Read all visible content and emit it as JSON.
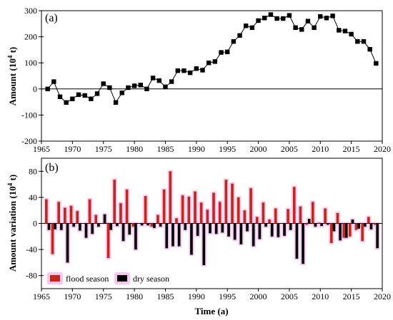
{
  "chart_data": [
    {
      "type": "line",
      "panel_label": "(a)",
      "ylabel_main": "Amount (10",
      "ylabel_sup": "4",
      "ylabel_tail": " t)",
      "ylim": [
        -200,
        300
      ],
      "yticks": [
        -200,
        -100,
        0,
        100,
        200,
        300
      ],
      "xlim": [
        1965,
        2020
      ],
      "xticks": [
        1965,
        1970,
        1975,
        1980,
        1985,
        1990,
        1995,
        2000,
        2005,
        2010,
        2015,
        2020
      ],
      "colors": {
        "line": "#000000",
        "zero_line": "#000000"
      },
      "x": [
        1966,
        1967,
        1968,
        1969,
        1970,
        1971,
        1972,
        1973,
        1974,
        1975,
        1976,
        1977,
        1978,
        1979,
        1980,
        1981,
        1982,
        1983,
        1984,
        1985,
        1986,
        1987,
        1988,
        1989,
        1990,
        1991,
        1992,
        1993,
        1994,
        1995,
        1996,
        1997,
        1998,
        1999,
        2000,
        2001,
        2002,
        2003,
        2004,
        2005,
        2006,
        2007,
        2008,
        2009,
        2010,
        2011,
        2012,
        2013,
        2014,
        2015,
        2016,
        2017,
        2018,
        2019
      ],
      "y": [
        0,
        28,
        -30,
        -52,
        -38,
        -22,
        -25,
        -38,
        -18,
        20,
        5,
        -52,
        -15,
        5,
        12,
        15,
        0,
        42,
        32,
        8,
        28,
        70,
        70,
        62,
        78,
        72,
        100,
        105,
        140,
        142,
        182,
        205,
        242,
        235,
        262,
        272,
        285,
        270,
        270,
        282,
        235,
        228,
        260,
        235,
        278,
        272,
        280,
        225,
        222,
        210,
        182,
        182,
        152,
        98
      ]
    },
    {
      "type": "bar",
      "panel_label": "(b)",
      "ylabel_main": "Amount variation (10",
      "ylabel_sup": "4",
      "ylabel_tail": " t)",
      "xlabel": "Time (a)",
      "ylim": [
        -100,
        100
      ],
      "yticks": [
        -80,
        -40,
        0,
        40,
        80
      ],
      "xlim": [
        1965,
        2020
      ],
      "xticks": [
        1965,
        1970,
        1975,
        1980,
        1985,
        1990,
        1995,
        2000,
        2005,
        2010,
        2015,
        2020
      ],
      "x": [
        1966,
        1967,
        1968,
        1969,
        1970,
        1971,
        1972,
        1973,
        1974,
        1975,
        1976,
        1977,
        1978,
        1979,
        1980,
        1981,
        1982,
        1983,
        1984,
        1985,
        1986,
        1987,
        1988,
        1989,
        1990,
        1991,
        1992,
        1993,
        1994,
        1995,
        1996,
        1997,
        1998,
        1999,
        2000,
        2001,
        2002,
        2003,
        2004,
        2005,
        2006,
        2007,
        2008,
        2009,
        2010,
        2011,
        2012,
        2013,
        2014,
        2015,
        2016,
        2017,
        2018,
        2019
      ],
      "series": [
        {
          "name": "flood season",
          "color": "#c0281b",
          "glow": "#f4c6f0",
          "values": [
            37,
            -47,
            33,
            24,
            27,
            19,
            0,
            37,
            13,
            0,
            -53,
            67,
            31,
            52,
            -5,
            0,
            42,
            -5,
            13,
            52,
            80,
            8,
            43,
            41,
            49,
            32,
            21,
            47,
            33,
            67,
            61,
            40,
            20,
            54,
            10,
            32,
            6,
            23,
            0,
            22,
            56,
            26,
            -2,
            33,
            1,
            23,
            -30,
            16,
            -22,
            -20,
            -10,
            -27,
            10,
            -2
          ]
        },
        {
          "name": "dry season",
          "color": "#000000",
          "glow": "#f4c6f0",
          "values": [
            -10,
            -9,
            -10,
            -60,
            -5,
            -11,
            -22,
            -16,
            -5,
            14,
            -10,
            -4,
            -27,
            -17,
            -40,
            -3,
            -3,
            -7,
            -5,
            -38,
            -35,
            -35,
            -10,
            -48,
            -19,
            -64,
            -15,
            -16,
            -14,
            -20,
            -25,
            -32,
            -12,
            -35,
            -24,
            -5,
            -20,
            -21,
            -19,
            -10,
            -54,
            -62,
            7,
            -5,
            -4,
            -2,
            -12,
            -26,
            -22,
            6,
            -8,
            -5,
            -9,
            -38
          ]
        }
      ]
    }
  ]
}
